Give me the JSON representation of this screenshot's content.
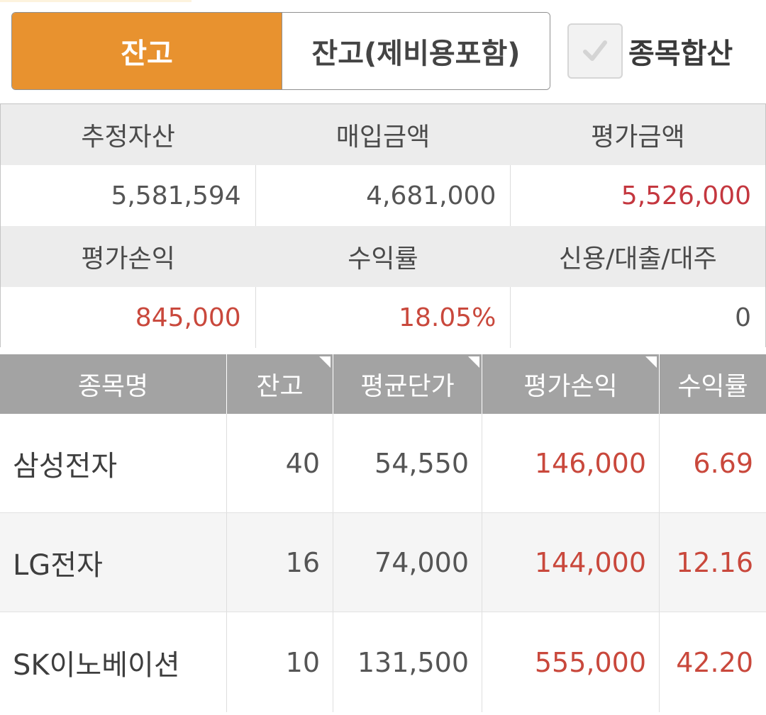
{
  "tabs": {
    "balance": "잔고",
    "balance_incl_fees": "잔고(제비용포함)"
  },
  "combine_checkbox": {
    "label": "종목합산",
    "checked": true
  },
  "summary": {
    "headers_row1": [
      "추정자산",
      "매입금액",
      "평가금액"
    ],
    "values_row1": [
      "5,581,594",
      "4,681,000",
      "5,526,000"
    ],
    "headers_row2": [
      "평가손익",
      "수익률",
      "신용/대출/대주"
    ],
    "values_row2": [
      "845,000",
      "18.05%",
      "0"
    ]
  },
  "holdings": {
    "columns": [
      "종목명",
      "잔고",
      "평균단가",
      "평가손익",
      "수익률"
    ],
    "rows": [
      {
        "name": "삼성전자",
        "qty": "40",
        "avg_price": "54,550",
        "pnl": "146,000",
        "return": "6.69"
      },
      {
        "name": "LG전자",
        "qty": "16",
        "avg_price": "74,000",
        "pnl": "144,000",
        "return": "12.16"
      },
      {
        "name": "SK이노베이션",
        "qty": "10",
        "avg_price": "131,500",
        "pnl": "555,000",
        "return": "42.20"
      }
    ]
  },
  "colors": {
    "accent": "#e8922f",
    "profit_red": "#c9483c",
    "header_gray": "#a3a3a3"
  }
}
